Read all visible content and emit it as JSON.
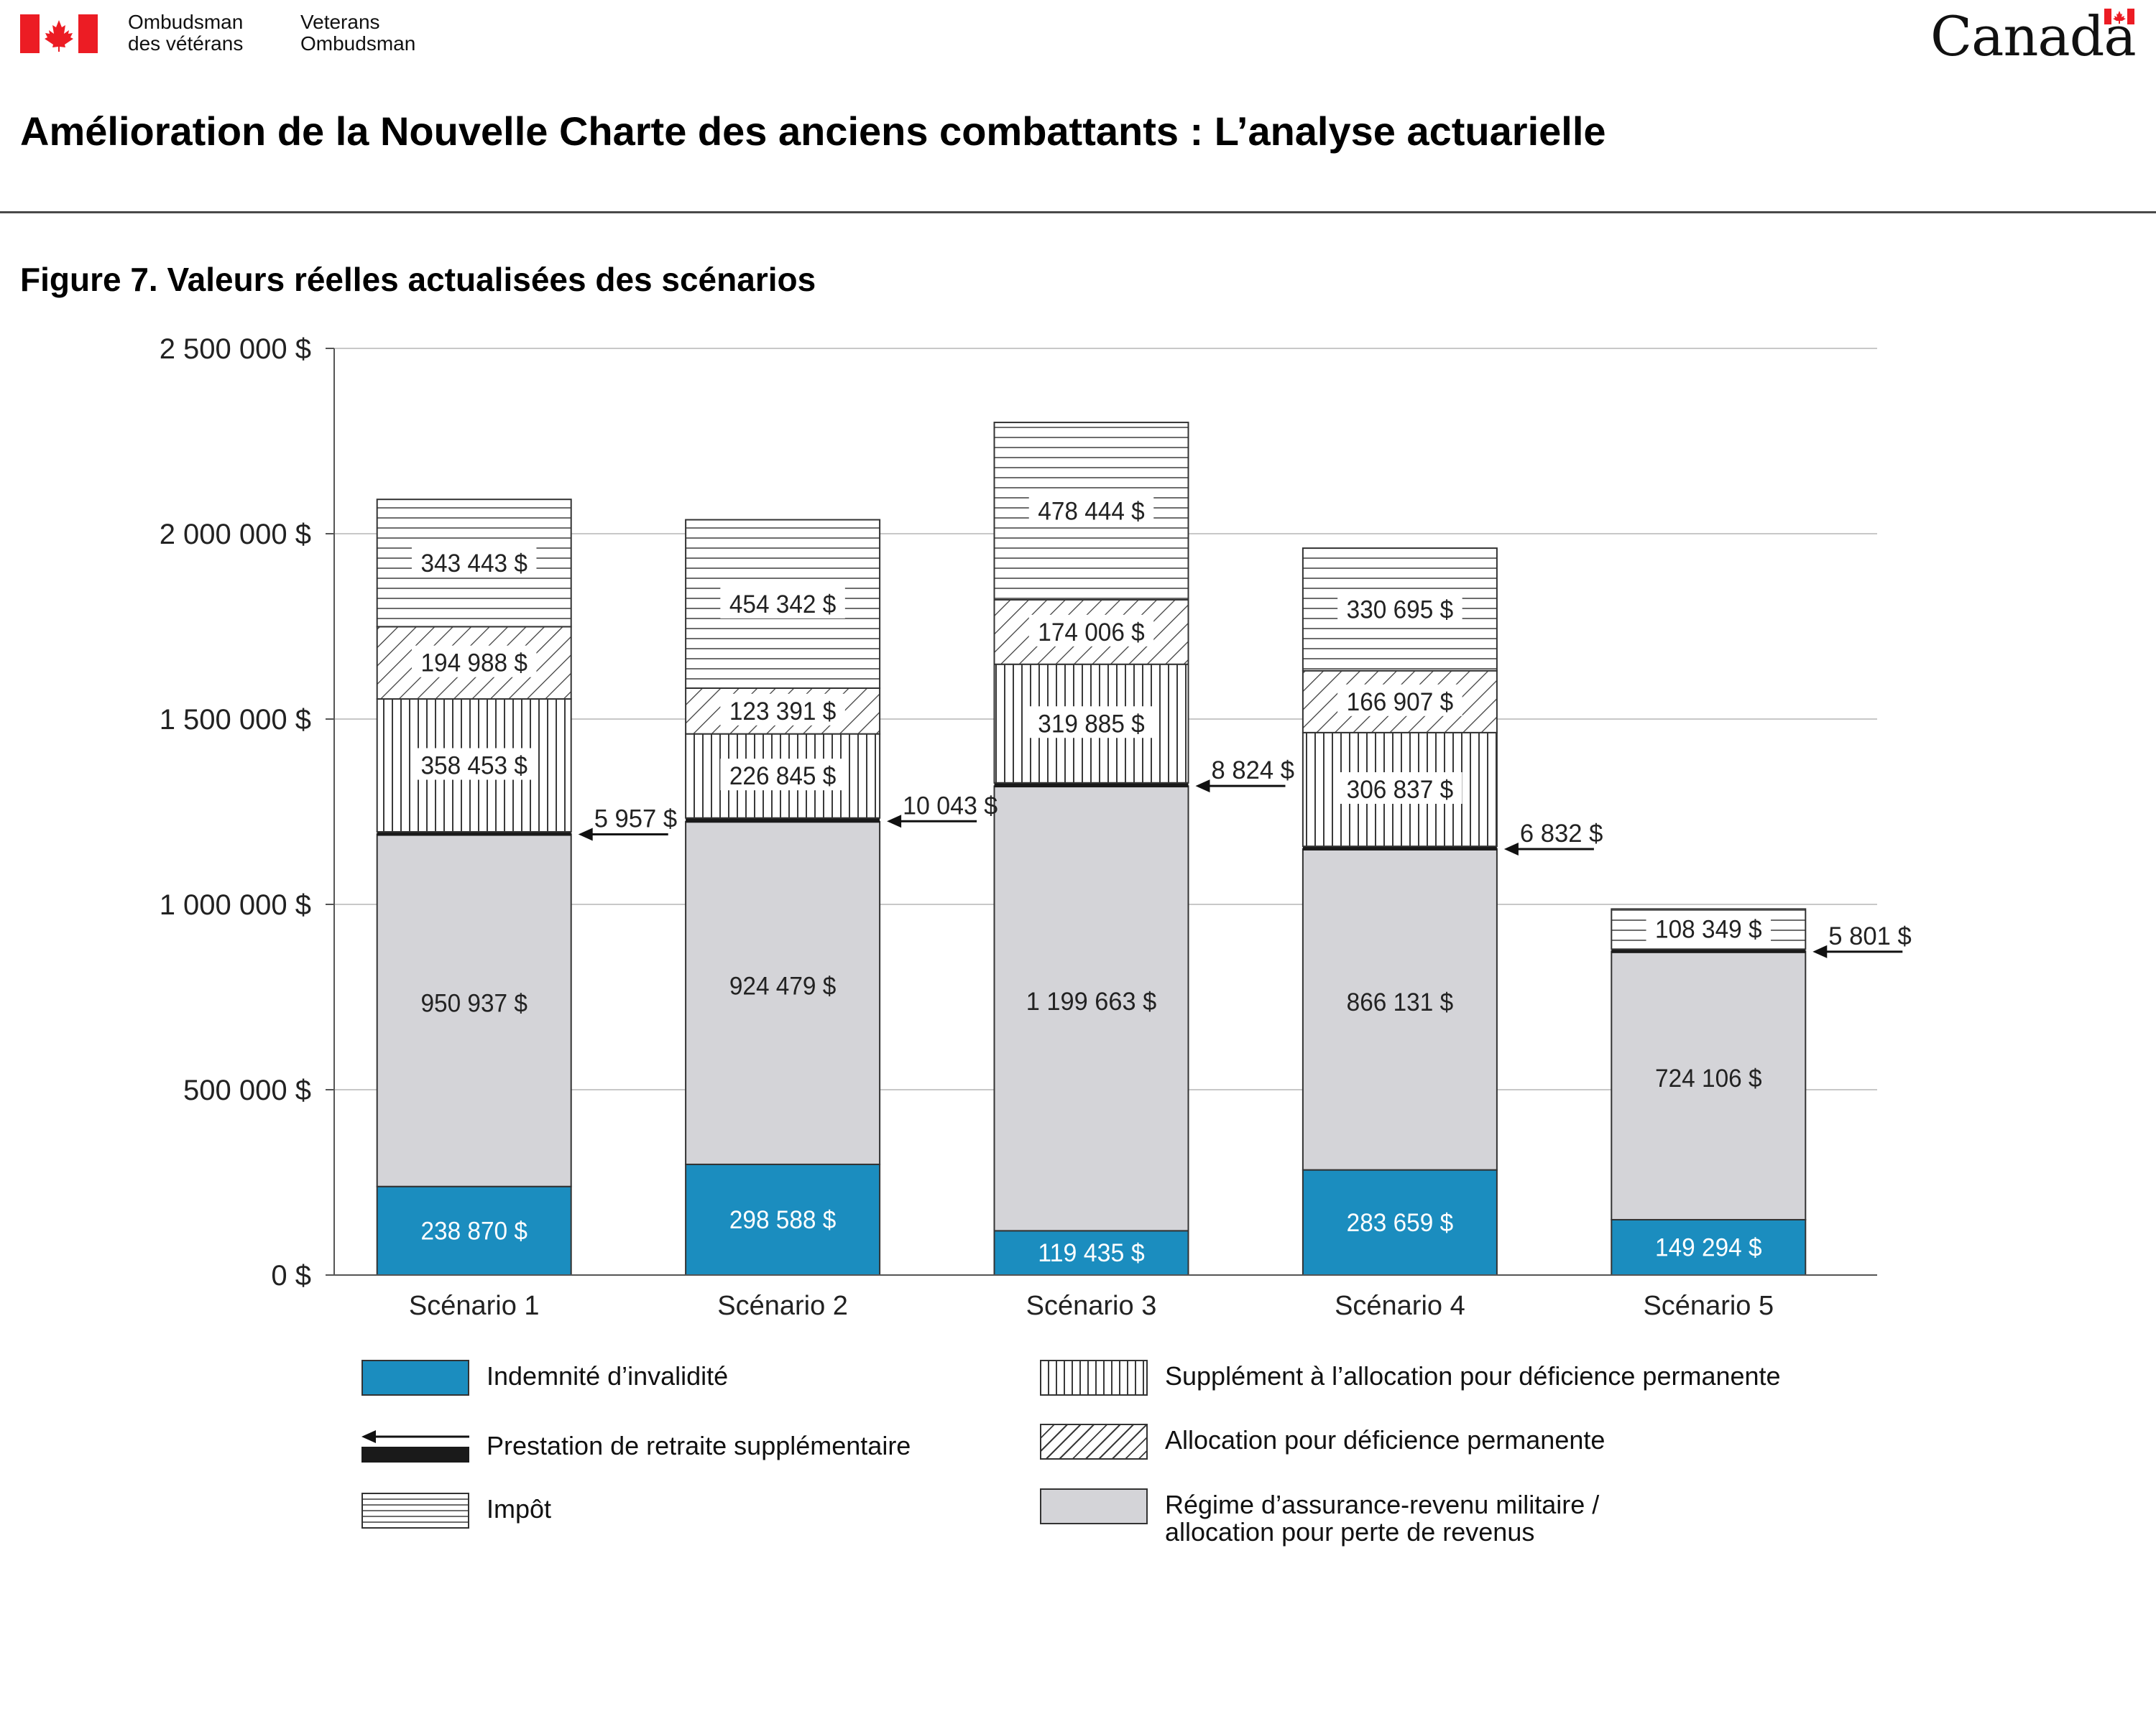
{
  "header": {
    "org_fr_line1": "Ombudsman",
    "org_fr_line2": "des vétérans",
    "org_en_line1": "Veterans",
    "org_en_line2": "Ombudsman",
    "wordmark": "Canada",
    "flag_icon": "canada-flag-icon",
    "flag_color": "#ec1c24"
  },
  "document_title": "Amélioration de la Nouvelle Charte des anciens combattants : L’analyse actuarielle",
  "figure_title": "Figure 7. Valeurs réelles actualisées des scénarios",
  "chart_data": {
    "type": "bar",
    "stacked": true,
    "title": "Figure 7. Valeurs réelles actualisées des scénarios",
    "xlabel": "",
    "ylabel": "",
    "ylim": [
      0,
      2500000
    ],
    "yticks": [
      0,
      500000,
      1000000,
      1500000,
      2000000,
      2500000
    ],
    "ytick_labels": [
      "0 $",
      "500 000 $",
      "1 000 000 $",
      "1 500 000 $",
      "2 000 000 $",
      "2 500 000 $"
    ],
    "grid": true,
    "categories": [
      "Scénario 1",
      "Scénario 2",
      "Scénario 3",
      "Scénario 4",
      "Scénario 5"
    ],
    "series": [
      {
        "name": "Indemnité d’invalidité",
        "pattern": "solid",
        "color": "#1b8dbf",
        "values": [
          238870,
          298588,
          119435,
          283659,
          149294
        ],
        "labels": [
          "238 870 $",
          "298 588 $",
          "119 435 $",
          "283 659 $",
          "149 294 $"
        ]
      },
      {
        "name": "Régime d’assurance-revenu militaire / allocation pour perte de revenus",
        "pattern": "solid",
        "color": "#d4d4d8",
        "values": [
          950937,
          924479,
          1199663,
          866131,
          724106
        ],
        "labels": [
          "950 937 $",
          "924 479 $",
          "1 199 663 $",
          "866 131 $",
          "724 106 $"
        ]
      },
      {
        "name": "Prestation de retraite supplémentaire",
        "pattern": "thick-line",
        "color": "#1a1a1a",
        "values": [
          5957,
          10043,
          8824,
          6832,
          5801
        ],
        "labels": [
          "5 957 $",
          "10 043 $",
          "8 824 $",
          "6 832 $",
          "5 801 $"
        ]
      },
      {
        "name": "Supplément à l’allocation pour déficience permanente",
        "pattern": "vertical-hatch",
        "color": "#ffffff",
        "values": [
          358453,
          226845,
          319885,
          306837,
          0
        ],
        "labels": [
          "358 453 $",
          "226 845 $",
          "319 885 $",
          "306 837 $",
          ""
        ]
      },
      {
        "name": "Allocation pour déficience permanente",
        "pattern": "diagonal-hatch",
        "color": "#ffffff",
        "values": [
          194988,
          123391,
          174006,
          166907,
          0
        ],
        "labels": [
          "194 988 $",
          "123 391 $",
          "174 006 $",
          "166 907 $",
          ""
        ]
      },
      {
        "name": "Impôt",
        "pattern": "horizontal-hatch",
        "color": "#ffffff",
        "values": [
          343443,
          454342,
          478444,
          330695,
          108349
        ],
        "labels": [
          "343 443 $",
          "454 342 $",
          "478 444 $",
          "330 695 $",
          "108 349 $"
        ]
      }
    ],
    "legend_placement": "bottom"
  },
  "legend": [
    {
      "label": "Indemnité d’invalidité",
      "swatch": "sw-plain-blue"
    },
    {
      "label": "Prestation de retraite supplémentaire",
      "swatch": "arrow-line"
    },
    {
      "label": "Impôt",
      "swatch": "sw-horiz"
    },
    {
      "label": "Supplément à l’allocation pour déficience permanente",
      "swatch": "sw-vert"
    },
    {
      "label": "Allocation pour déficience permanente",
      "swatch": "sw-diag"
    },
    {
      "label": "Régime d’assurance-revenu militaire /\nallocation pour perte de revenus",
      "swatch": "sw-plain-grey"
    }
  ]
}
